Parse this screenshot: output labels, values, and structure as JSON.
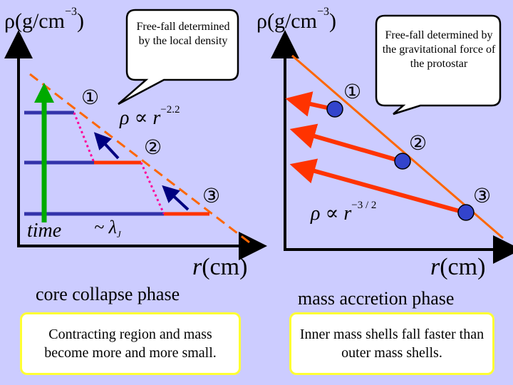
{
  "left_panel": {
    "y_axis_label": "ρ(g/cm",
    "y_axis_exp": "−3",
    "y_axis_close": ")",
    "x_axis_label": "r",
    "x_axis_unit": "(cm)",
    "bubble": "Free-fall determined by the local density",
    "slope_label": "ρ ∝ r",
    "slope_exp": "−2.2",
    "markers": [
      "①",
      "②",
      "③"
    ],
    "time_label": "time",
    "lambda_label": "~ λ",
    "lambda_sub": "J",
    "phase_label": "core collapse phase",
    "caption": "Contracting region and mass become more and more small."
  },
  "right_panel": {
    "y_axis_label": "ρ(g/cm",
    "y_axis_exp": "−3",
    "y_axis_close": ")",
    "x_axis_label": "r",
    "x_axis_unit": "(cm)",
    "bubble": "Free-fall determined by the gravitational force of the protostar",
    "slope_label": "ρ ∝ r",
    "slope_exp": "−3 / 2",
    "markers": [
      "①",
      "②",
      "③"
    ],
    "phase_label": "mass accretion phase",
    "caption": "Inner mass shells fall faster than outer mass shells."
  },
  "colors": {
    "background": "#ccccff",
    "axis": "#000000",
    "dashed_line": "#ff6600",
    "blue_step": "#3333aa",
    "red_step": "#ff3300",
    "dotted": "#ff0099",
    "arrow_blue": "#000080",
    "time_arrow": "#00aa00",
    "accretion_arrow": "#ff3300",
    "shell_dot": "#3344cc",
    "box_border": "#ffff33"
  }
}
